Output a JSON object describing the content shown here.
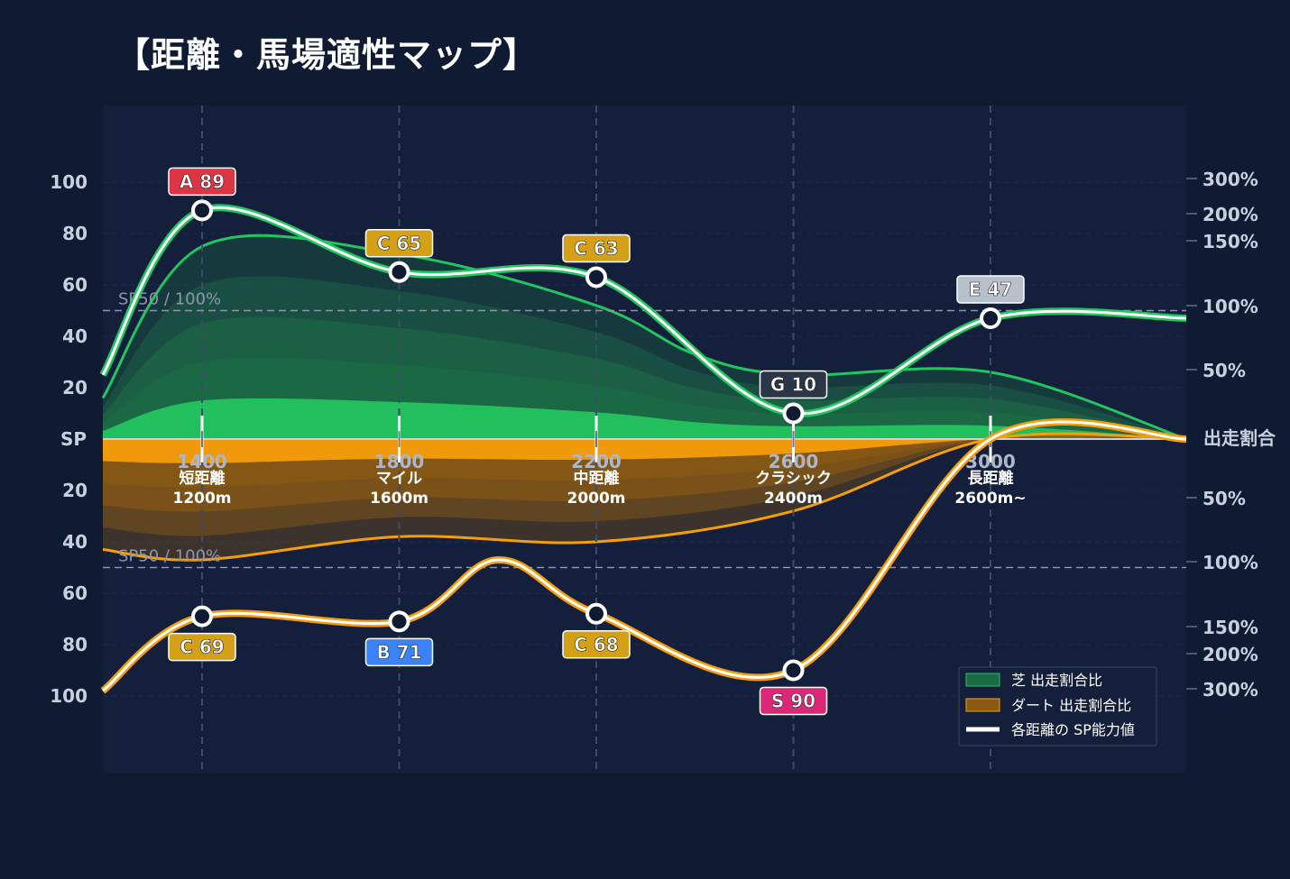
{
  "title": "【距離・馬場適性マップ】",
  "chart_data": {
    "type": "area",
    "x_axis": {
      "range": [
        1200,
        3200
      ],
      "ticks": [
        1400,
        1800,
        2200,
        2600,
        3000
      ]
    },
    "y_axis_left": {
      "center_label": "SP",
      "ticks": [
        20,
        40,
        60,
        80,
        100
      ],
      "range": [
        0,
        100
      ]
    },
    "y_axis_right": {
      "center_label": "出走割合",
      "upper_ticks": [
        "300%",
        "200%",
        "150%",
        "100%",
        "50%"
      ],
      "lower_ticks": [
        "50%",
        "100%",
        "150%",
        "200%",
        "300%"
      ]
    },
    "reference_line": {
      "label": "SP50 / 100%",
      "value": 50
    },
    "categories": [
      {
        "name": "短距離",
        "distance": "1200m",
        "x": 1400
      },
      {
        "name": "マイル",
        "distance": "1600m",
        "x": 1800
      },
      {
        "name": "中距離",
        "distance": "2000m",
        "x": 2200
      },
      {
        "name": "クラシック",
        "distance": "2400m",
        "x": 2600
      },
      {
        "name": "長距離",
        "distance": "2600m~",
        "x": 3000
      }
    ],
    "series": [
      {
        "name": "芝 出走割合比",
        "color": "#22c55e",
        "outline_sp": [
          [
            1200,
            16
          ],
          [
            1400,
            75
          ],
          [
            1800,
            72
          ],
          [
            2200,
            52
          ],
          [
            2400,
            33
          ],
          [
            2600,
            25
          ],
          [
            3000,
            26
          ],
          [
            3400,
            0
          ]
        ]
      },
      {
        "name": "ダート 出走割合比",
        "color": "#f59e0b",
        "outline_sp": [
          [
            1200,
            43
          ],
          [
            1400,
            47
          ],
          [
            1800,
            38
          ],
          [
            2200,
            40
          ],
          [
            2600,
            28
          ],
          [
            3000,
            0
          ],
          [
            3400,
            0
          ]
        ]
      },
      {
        "name": "各距離の SP能力値",
        "color": "#ffffff",
        "turf_points": [
          {
            "x": 1400,
            "sp": 89,
            "label": "A 89",
            "color": "#dc3545"
          },
          {
            "x": 1800,
            "sp": 65,
            "label": "C 65",
            "color": "#d4a017"
          },
          {
            "x": 2200,
            "sp": 63,
            "label": "C 63",
            "color": "#d4a017"
          },
          {
            "x": 2600,
            "sp": 10,
            "label": "G 10",
            "color": "#2b3648"
          },
          {
            "x": 3000,
            "sp": 47,
            "label": "E 47",
            "color": "#b8c0cc"
          }
        ],
        "dirt_points": [
          {
            "x": 1400,
            "sp": 69,
            "label": "C 69",
            "color": "#d4a017"
          },
          {
            "x": 1800,
            "sp": 71,
            "label": "B 71",
            "color": "#3b82f6"
          },
          {
            "x": 2200,
            "sp": 68,
            "label": "C 68",
            "color": "#d4a017"
          },
          {
            "x": 2600,
            "sp": 90,
            "label": "S 90",
            "color": "#db2777"
          }
        ]
      }
    ],
    "legend_position": "bottom-right",
    "grid": true
  }
}
